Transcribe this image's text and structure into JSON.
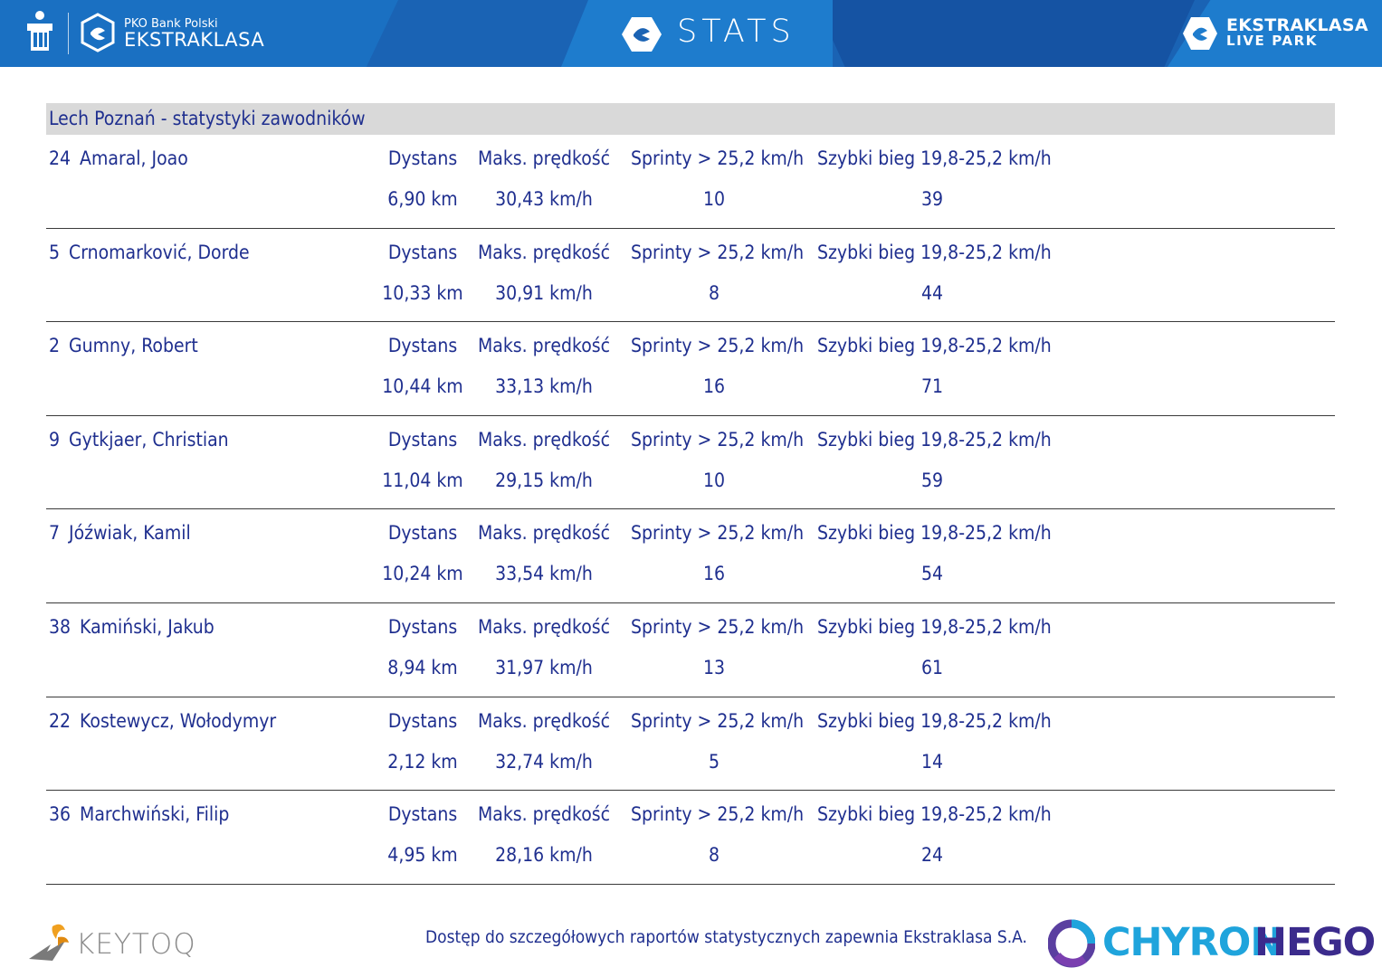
{
  "header": {
    "brand_small": "PKO Bank Polski",
    "brand_big": "EKSTRAKLASA",
    "stats_title": "STATS",
    "livepark_line1": "EKSTRAKLASA",
    "livepark_line2": "LIVE PARK"
  },
  "section_title": "Lech Poznań - statystyki zawodników",
  "column_labels": {
    "distance": "Dystans",
    "max_speed": "Maks. prędkość",
    "sprints": "Sprinty > 25,2 km/h",
    "fast_runs": "Szybki bieg 19,8-25,2 km/h"
  },
  "players": [
    {
      "number": "24",
      "name": "Amaral, Joao",
      "distance": "6,90 km",
      "max_speed": "30,43 km/h",
      "sprints": "10",
      "fast_runs": "39"
    },
    {
      "number": "5",
      "name": "Crnomarković, Dorde",
      "distance": "10,33 km",
      "max_speed": "30,91 km/h",
      "sprints": "8",
      "fast_runs": "44"
    },
    {
      "number": "2",
      "name": "Gumny, Robert",
      "distance": "10,44 km",
      "max_speed": "33,13 km/h",
      "sprints": "16",
      "fast_runs": "71"
    },
    {
      "number": "9",
      "name": "Gytkjaer, Christian",
      "distance": "11,04 km",
      "max_speed": "29,15 km/h",
      "sprints": "10",
      "fast_runs": "59"
    },
    {
      "number": "7",
      "name": "Jóźwiak, Kamil",
      "distance": "10,24 km",
      "max_speed": "33,54 km/h",
      "sprints": "16",
      "fast_runs": "54"
    },
    {
      "number": "38",
      "name": "Kamiński, Jakub",
      "distance": "8,94 km",
      "max_speed": "31,97 km/h",
      "sprints": "13",
      "fast_runs": "61"
    },
    {
      "number": "22",
      "name": "Kostewycz, Wołodymyr",
      "distance": "2,12 km",
      "max_speed": "32,74 km/h",
      "sprints": "5",
      "fast_runs": "14"
    },
    {
      "number": "36",
      "name": "Marchwiński, Filip",
      "distance": "4,95 km",
      "max_speed": "28,16 km/h",
      "sprints": "8",
      "fast_runs": "24"
    }
  ],
  "footer": {
    "keytoq": "KEYTOQ",
    "note": "Dostęp do szczegółowych raportów statystycznych zapewnia Ekstraklasa S.A.",
    "chyron_part1": "CHYRON",
    "chyron_part2": "HEGO"
  },
  "colors": {
    "header_blue": "#1a63b4",
    "text_navy": "#1f2f8f",
    "title_bar_gray": "#d9d9d9",
    "keytoq_gray": "#8c8c8c",
    "chyron_cyan": "#1fa4dc",
    "hego_purple": "#3b2b8c"
  },
  "icons": [
    "pko-bank-logo-icon",
    "ekstraklasa-logo-icon",
    "stats-logo-icon",
    "live-park-logo-icon",
    "keytoq-logo-icon",
    "chyronhego-logo-icon"
  ]
}
